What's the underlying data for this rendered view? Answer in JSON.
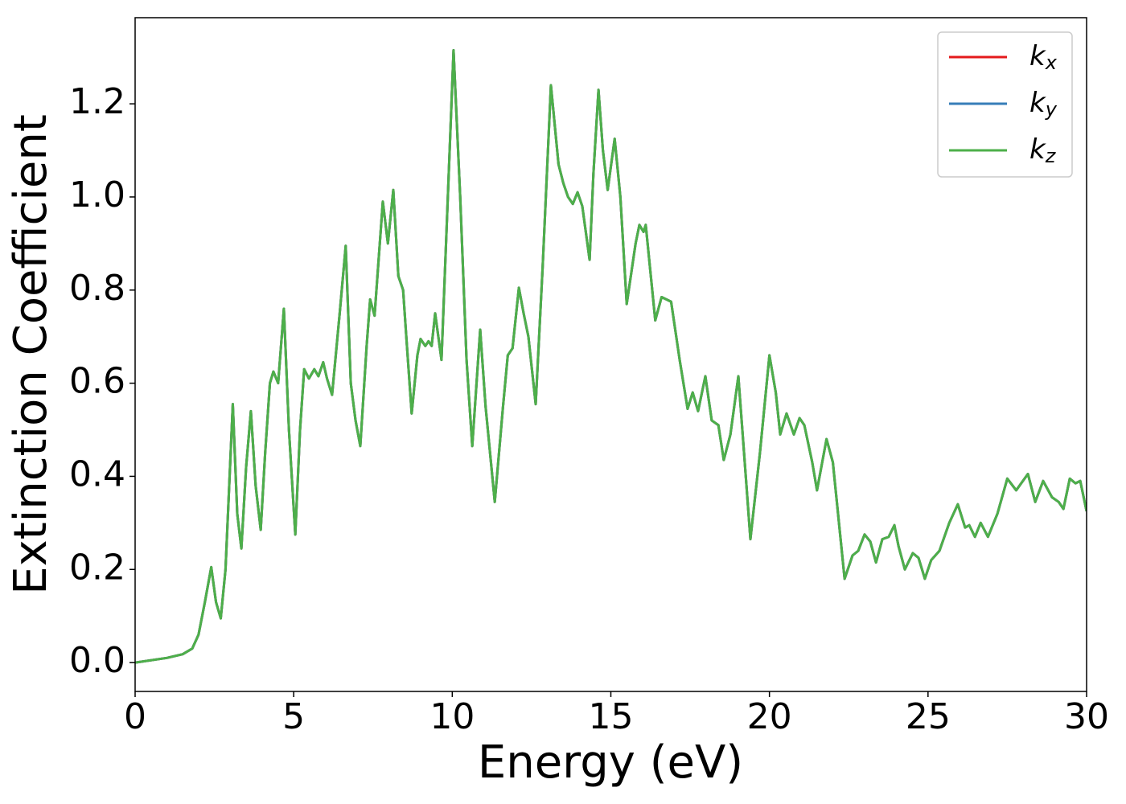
{
  "chart_data": {
    "type": "line",
    "xlabel": "Energy (eV)",
    "ylabel": "Extinction Coefficient",
    "xlim": [
      0,
      30
    ],
    "ylim": [
      -0.062,
      1.385
    ],
    "xticks": [
      0,
      5,
      10,
      15,
      20,
      25,
      30
    ],
    "yticks": [
      {
        "value": 0,
        "label": "0.0"
      },
      {
        "value": 0.2,
        "label": "0.2"
      },
      {
        "value": 0.4,
        "label": "0.4"
      },
      {
        "value": 0.6,
        "label": "0.6"
      },
      {
        "value": 0.8,
        "label": "0.8"
      },
      {
        "value": 1,
        "label": "1.0"
      },
      {
        "value": 1.2,
        "label": "1.2"
      }
    ],
    "legend": "upper right",
    "grid": false,
    "x": [
      0,
      1,
      1.5,
      1.8,
      2.0,
      2.2,
      2.4,
      2.55,
      2.7,
      2.85,
      3.08,
      3.22,
      3.35,
      3.5,
      3.65,
      3.8,
      3.96,
      4.1,
      4.25,
      4.36,
      4.51,
      4.69,
      4.85,
      5.05,
      5.2,
      5.33,
      5.48,
      5.65,
      5.78,
      5.93,
      6.05,
      6.21,
      6.45,
      6.64,
      6.8,
      6.95,
      7.1,
      7.3,
      7.41,
      7.55,
      7.81,
      7.97,
      8.14,
      8.3,
      8.45,
      8.55,
      8.72,
      8.9,
      9.0,
      9.15,
      9.25,
      9.35,
      9.46,
      9.66,
      10.04,
      10.25,
      10.45,
      10.63,
      10.88,
      11.05,
      11.34,
      11.6,
      11.75,
      11.9,
      12.1,
      12.25,
      12.4,
      12.63,
      12.85,
      13.11,
      13.35,
      13.5,
      13.65,
      13.8,
      13.95,
      14.1,
      14.33,
      14.45,
      14.61,
      14.75,
      14.9,
      15.12,
      15.3,
      15.5,
      15.78,
      15.9,
      16.03,
      16.1,
      16.4,
      16.6,
      16.9,
      17.17,
      17.42,
      17.58,
      17.75,
      17.98,
      18.18,
      18.39,
      18.56,
      18.77,
      19.02,
      19.2,
      19.4,
      19.7,
      20.0,
      20.2,
      20.34,
      20.54,
      20.77,
      20.95,
      21.1,
      21.35,
      21.5,
      21.8,
      22.0,
      22.37,
      22.62,
      22.8,
      23.0,
      23.18,
      23.36,
      23.56,
      23.76,
      23.94,
      24.07,
      24.27,
      24.52,
      24.7,
      24.9,
      25.1,
      25.36,
      25.67,
      25.94,
      26.17,
      26.3,
      26.48,
      26.66,
      26.89,
      27.19,
      27.5,
      27.78,
      28.15,
      28.38,
      28.63,
      28.91,
      29.12,
      29.27,
      29.47,
      29.65,
      29.8,
      30.0
    ],
    "series": [
      {
        "name": "kx",
        "color": "#e41a1c",
        "values": [
          0,
          0.01,
          0.018,
          0.03,
          0.06,
          0.13,
          0.205,
          0.13,
          0.095,
          0.2,
          0.555,
          0.32,
          0.245,
          0.42,
          0.54,
          0.38,
          0.285,
          0.45,
          0.6,
          0.625,
          0.6,
          0.76,
          0.5,
          0.275,
          0.5,
          0.63,
          0.61,
          0.63,
          0.615,
          0.645,
          0.61,
          0.575,
          0.75,
          0.895,
          0.6,
          0.52,
          0.465,
          0.68,
          0.78,
          0.745,
          0.99,
          0.9,
          1.015,
          0.83,
          0.8,
          0.7,
          0.535,
          0.66,
          0.695,
          0.68,
          0.69,
          0.68,
          0.75,
          0.65,
          1.315,
          1.0,
          0.65,
          0.465,
          0.715,
          0.55,
          0.345,
          0.55,
          0.66,
          0.675,
          0.805,
          0.75,
          0.7,
          0.555,
          0.85,
          1.24,
          1.07,
          1.03,
          1.0,
          0.985,
          1.01,
          0.98,
          0.865,
          1.05,
          1.23,
          1.1,
          1.015,
          1.125,
          1.0,
          0.77,
          0.9,
          0.94,
          0.925,
          0.94,
          0.735,
          0.785,
          0.775,
          0.65,
          0.545,
          0.58,
          0.54,
          0.615,
          0.52,
          0.51,
          0.435,
          0.49,
          0.615,
          0.45,
          0.265,
          0.45,
          0.66,
          0.58,
          0.49,
          0.535,
          0.49,
          0.525,
          0.51,
          0.43,
          0.37,
          0.48,
          0.43,
          0.18,
          0.23,
          0.24,
          0.275,
          0.26,
          0.215,
          0.265,
          0.27,
          0.295,
          0.25,
          0.2,
          0.235,
          0.225,
          0.18,
          0.22,
          0.24,
          0.3,
          0.34,
          0.29,
          0.295,
          0.27,
          0.3,
          0.27,
          0.32,
          0.395,
          0.37,
          0.405,
          0.345,
          0.39,
          0.355,
          0.345,
          0.33,
          0.395,
          0.385,
          0.39,
          0.325
        ]
      },
      {
        "name": "ky",
        "color": "#377eb8",
        "values": [
          0,
          0.01,
          0.018,
          0.03,
          0.06,
          0.13,
          0.205,
          0.13,
          0.095,
          0.2,
          0.555,
          0.32,
          0.245,
          0.42,
          0.54,
          0.38,
          0.285,
          0.45,
          0.6,
          0.625,
          0.6,
          0.76,
          0.5,
          0.275,
          0.5,
          0.63,
          0.61,
          0.63,
          0.615,
          0.645,
          0.61,
          0.575,
          0.75,
          0.895,
          0.6,
          0.52,
          0.465,
          0.68,
          0.78,
          0.745,
          0.99,
          0.9,
          1.015,
          0.83,
          0.8,
          0.7,
          0.535,
          0.66,
          0.695,
          0.68,
          0.69,
          0.68,
          0.75,
          0.65,
          1.315,
          1.0,
          0.65,
          0.465,
          0.715,
          0.55,
          0.345,
          0.55,
          0.66,
          0.675,
          0.805,
          0.75,
          0.7,
          0.555,
          0.85,
          1.24,
          1.07,
          1.03,
          1.0,
          0.985,
          1.01,
          0.98,
          0.865,
          1.05,
          1.23,
          1.1,
          1.015,
          1.125,
          1.0,
          0.77,
          0.9,
          0.94,
          0.925,
          0.94,
          0.735,
          0.785,
          0.775,
          0.65,
          0.545,
          0.58,
          0.54,
          0.615,
          0.52,
          0.51,
          0.435,
          0.49,
          0.615,
          0.45,
          0.265,
          0.45,
          0.66,
          0.58,
          0.49,
          0.535,
          0.49,
          0.525,
          0.51,
          0.43,
          0.37,
          0.48,
          0.43,
          0.18,
          0.23,
          0.24,
          0.275,
          0.26,
          0.215,
          0.265,
          0.27,
          0.295,
          0.25,
          0.2,
          0.235,
          0.225,
          0.18,
          0.22,
          0.24,
          0.3,
          0.34,
          0.29,
          0.295,
          0.27,
          0.3,
          0.27,
          0.32,
          0.395,
          0.37,
          0.405,
          0.345,
          0.39,
          0.355,
          0.345,
          0.33,
          0.395,
          0.385,
          0.39,
          0.325
        ]
      },
      {
        "name": "kz",
        "color": "#4daf4a",
        "values": [
          0,
          0.01,
          0.018,
          0.03,
          0.06,
          0.13,
          0.205,
          0.13,
          0.095,
          0.2,
          0.555,
          0.32,
          0.245,
          0.42,
          0.54,
          0.38,
          0.285,
          0.45,
          0.6,
          0.625,
          0.6,
          0.76,
          0.5,
          0.275,
          0.5,
          0.63,
          0.61,
          0.63,
          0.615,
          0.645,
          0.61,
          0.575,
          0.75,
          0.895,
          0.6,
          0.52,
          0.465,
          0.68,
          0.78,
          0.745,
          0.99,
          0.9,
          1.015,
          0.83,
          0.8,
          0.7,
          0.535,
          0.66,
          0.695,
          0.68,
          0.69,
          0.68,
          0.75,
          0.65,
          1.315,
          1.0,
          0.65,
          0.465,
          0.715,
          0.55,
          0.345,
          0.55,
          0.66,
          0.675,
          0.805,
          0.75,
          0.7,
          0.555,
          0.85,
          1.24,
          1.07,
          1.03,
          1.0,
          0.985,
          1.01,
          0.98,
          0.865,
          1.05,
          1.23,
          1.1,
          1.015,
          1.125,
          1.0,
          0.77,
          0.9,
          0.94,
          0.925,
          0.94,
          0.735,
          0.785,
          0.775,
          0.65,
          0.545,
          0.58,
          0.54,
          0.615,
          0.52,
          0.51,
          0.435,
          0.49,
          0.615,
          0.45,
          0.265,
          0.45,
          0.66,
          0.58,
          0.49,
          0.535,
          0.49,
          0.525,
          0.51,
          0.43,
          0.37,
          0.48,
          0.43,
          0.18,
          0.23,
          0.24,
          0.275,
          0.26,
          0.215,
          0.265,
          0.27,
          0.295,
          0.25,
          0.2,
          0.235,
          0.225,
          0.18,
          0.22,
          0.24,
          0.3,
          0.34,
          0.29,
          0.295,
          0.27,
          0.3,
          0.27,
          0.32,
          0.395,
          0.37,
          0.405,
          0.345,
          0.39,
          0.355,
          0.345,
          0.33,
          0.395,
          0.385,
          0.39,
          0.325
        ]
      }
    ]
  }
}
